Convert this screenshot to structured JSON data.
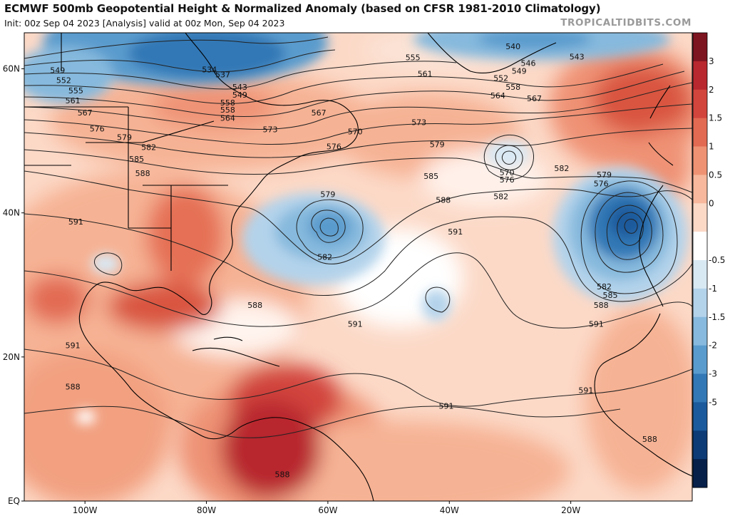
{
  "header": {
    "title": "ECMWF 500mb Geopotential Height & Normalized Anomaly (based on CFSR 1981-2010 Climatology)",
    "subtitle": "Init: 00z Sep 04 2023   [Analysis]   valid at 00z Mon, Sep 04 2023",
    "brand": "TROPICALTIDBITS.COM"
  },
  "axes": {
    "lat_labels": [
      {
        "label": "60N",
        "lat": 60
      },
      {
        "label": "40N",
        "lat": 40
      },
      {
        "label": "20N",
        "lat": 20
      },
      {
        "label": "EQ",
        "lat": 0
      }
    ],
    "lon_labels": [
      {
        "label": "100W",
        "lon": -100
      },
      {
        "label": "80W",
        "lon": -80
      },
      {
        "label": "60W",
        "lon": -60
      },
      {
        "label": "40W",
        "lon": -40
      },
      {
        "label": "20W",
        "lon": -20
      }
    ]
  },
  "colorbar": {
    "ticks": [
      "3",
      "2",
      "1.5",
      "1",
      "0.5",
      "0",
      "-0.5",
      "-1",
      "-1.5",
      "-2",
      "-3",
      "-5"
    ],
    "colors_top_to_bottom": [
      "#7d1520",
      "#b8282e",
      "#d2453d",
      "#e26a52",
      "#ef9274",
      "#f7b89d",
      "#fcd9c7",
      "#ffffff",
      "#d9e9f4",
      "#b3d3eb",
      "#86b9dd",
      "#5a9bcd",
      "#3378b6",
      "#1b5a9c",
      "#0d3b76",
      "#06204a"
    ]
  },
  "contour_labels": [
    {
      "text": "549",
      "lon": -104.5,
      "lat": 59.7
    },
    {
      "text": "552",
      "lon": -103.5,
      "lat": 58.3
    },
    {
      "text": "555",
      "lon": -101.5,
      "lat": 56.9
    },
    {
      "text": "561",
      "lon": -102,
      "lat": 55.5
    },
    {
      "text": "567",
      "lon": -100,
      "lat": 53.8
    },
    {
      "text": "576",
      "lon": -98,
      "lat": 51.6
    },
    {
      "text": "579",
      "lon": -93.5,
      "lat": 50.4
    },
    {
      "text": "582",
      "lon": -89.5,
      "lat": 49.0
    },
    {
      "text": "585",
      "lon": -91.5,
      "lat": 47.4
    },
    {
      "text": "588",
      "lon": -90.5,
      "lat": 45.4
    },
    {
      "text": "591",
      "lon": -101.5,
      "lat": 38.7
    },
    {
      "text": "534",
      "lon": -79.5,
      "lat": 59.8
    },
    {
      "text": "537",
      "lon": -77.3,
      "lat": 59.1
    },
    {
      "text": "543",
      "lon": -74.5,
      "lat": 57.4
    },
    {
      "text": "549",
      "lon": -74.5,
      "lat": 56.3
    },
    {
      "text": "558",
      "lon": -76.5,
      "lat": 55.2
    },
    {
      "text": "558",
      "lon": -76.5,
      "lat": 54.2
    },
    {
      "text": "564",
      "lon": -76.5,
      "lat": 53.1
    },
    {
      "text": "573",
      "lon": -69.5,
      "lat": 51.5
    },
    {
      "text": "567",
      "lon": -61.5,
      "lat": 53.8
    },
    {
      "text": "570",
      "lon": -55.5,
      "lat": 51.2
    },
    {
      "text": "576",
      "lon": -59,
      "lat": 49.1
    },
    {
      "text": "579",
      "lon": -60,
      "lat": 42.5
    },
    {
      "text": "582",
      "lon": -60.5,
      "lat": 33.8
    },
    {
      "text": "588",
      "lon": -72,
      "lat": 27.1
    },
    {
      "text": "591",
      "lon": -55.5,
      "lat": 24.5
    },
    {
      "text": "591",
      "lon": -102,
      "lat": 21.5
    },
    {
      "text": "588",
      "lon": -102,
      "lat": 15.8
    },
    {
      "text": "588",
      "lon": -67.5,
      "lat": 3.6
    },
    {
      "text": "591",
      "lon": -40.5,
      "lat": 13.1
    },
    {
      "text": "555",
      "lon": -46,
      "lat": 61.5
    },
    {
      "text": "561",
      "lon": -44,
      "lat": 59.2
    },
    {
      "text": "573",
      "lon": -45,
      "lat": 52.5
    },
    {
      "text": "579",
      "lon": -42,
      "lat": 49.4
    },
    {
      "text": "585",
      "lon": -43,
      "lat": 45.0
    },
    {
      "text": "588",
      "lon": -41,
      "lat": 41.7
    },
    {
      "text": "591",
      "lon": -39,
      "lat": 37.3
    },
    {
      "text": "540",
      "lon": -29.5,
      "lat": 63.0
    },
    {
      "text": "546",
      "lon": -27,
      "lat": 60.7
    },
    {
      "text": "549",
      "lon": -28.5,
      "lat": 59.6
    },
    {
      "text": "543",
      "lon": -19,
      "lat": 61.6
    },
    {
      "text": "552",
      "lon": -31.5,
      "lat": 58.6
    },
    {
      "text": "558",
      "lon": -29.5,
      "lat": 57.4
    },
    {
      "text": "564",
      "lon": -32,
      "lat": 56.2
    },
    {
      "text": "567",
      "lon": -26,
      "lat": 55.8
    },
    {
      "text": "570",
      "lon": -30.5,
      "lat": 45.5
    },
    {
      "text": "576",
      "lon": -30.5,
      "lat": 44.5
    },
    {
      "text": "582",
      "lon": -31.5,
      "lat": 42.2
    },
    {
      "text": "582",
      "lon": -21.5,
      "lat": 46.1
    },
    {
      "text": "579",
      "lon": -14.5,
      "lat": 45.2
    },
    {
      "text": "576",
      "lon": -15,
      "lat": 44.0
    },
    {
      "text": "582",
      "lon": -14.5,
      "lat": 29.7
    },
    {
      "text": "585",
      "lon": -13.5,
      "lat": 28.5
    },
    {
      "text": "588",
      "lon": -15,
      "lat": 27.1
    },
    {
      "text": "591",
      "lon": -15.8,
      "lat": 24.5
    },
    {
      "text": "591",
      "lon": -17.5,
      "lat": 15.3
    },
    {
      "text": "588",
      "lon": -7,
      "lat": 8.5
    }
  ],
  "style": {
    "ocean_base": "#fde4d6",
    "positive_strong": "#d2453d",
    "negative_strong": "#2f6faa",
    "contour": "#222222",
    "coast": "#000000"
  }
}
